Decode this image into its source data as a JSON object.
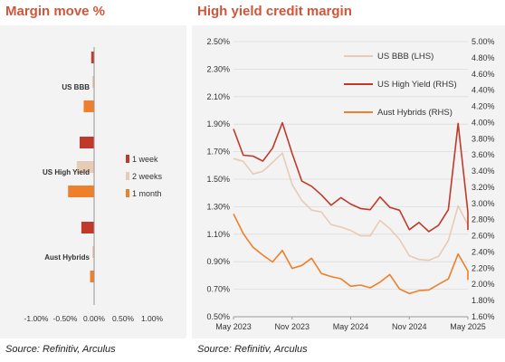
{
  "left": {
    "title": "Margin move %",
    "source": "Source: Refinitiv, Arculus"
  },
  "right": {
    "title": "High yield credit margin",
    "source": "Source: Refinitiv, Arculus"
  },
  "chart_data": [
    {
      "type": "bar",
      "orientation": "horizontal",
      "categories": [
        "US BBB",
        "US High Yield",
        "Aust Hybrids"
      ],
      "series": [
        {
          "name": "1 week",
          "color": "#c0392b",
          "values": [
            -0.05,
            -0.25,
            -0.22
          ]
        },
        {
          "name": "2 weeks",
          "color": "#e8cbb5",
          "values": [
            -0.03,
            -0.3,
            -0.03
          ]
        },
        {
          "name": "1 month",
          "color": "#ef7f2a",
          "values": [
            -0.18,
            -0.45,
            -0.07
          ]
        }
      ],
      "xlim": [
        -1.0,
        1.0
      ],
      "x_ticks": [
        "-1.00%",
        "-0.50%",
        "0.00%",
        "0.50%",
        "1.00%"
      ],
      "legend_position": "right"
    },
    {
      "type": "line",
      "x_ticks": [
        "May 2023",
        "Nov 2023",
        "May 2024",
        "Nov 2024",
        "May 2025"
      ],
      "y_left_ticks": [
        "0.50%",
        "0.70%",
        "0.90%",
        "1.10%",
        "1.30%",
        "1.50%",
        "1.70%",
        "1.90%",
        "2.10%",
        "2.30%",
        "2.50%"
      ],
      "y_right_ticks": [
        "1.60%",
        "1.80%",
        "2.00%",
        "2.20%",
        "2.40%",
        "2.60%",
        "2.80%",
        "3.00%",
        "3.20%",
        "3.40%",
        "3.60%",
        "3.80%",
        "4.00%",
        "4.20%",
        "4.40%",
        "4.60%",
        "4.80%",
        "5.00%"
      ],
      "ylim_left": [
        0.5,
        2.5
      ],
      "ylim_right": [
        1.6,
        5.0
      ],
      "legend_position": "top-right",
      "series": [
        {
          "name": "US BBB (LHS)",
          "axis": "left",
          "color": "#e8cbb5",
          "x": [
            "2023-05",
            "2023-06",
            "2023-07",
            "2023-08",
            "2023-09",
            "2023-10",
            "2023-11",
            "2023-12",
            "2024-01",
            "2024-02",
            "2024-03",
            "2024-04",
            "2024-05",
            "2024-06",
            "2024-07",
            "2024-08",
            "2024-09",
            "2024-10",
            "2024-11",
            "2024-12",
            "2025-01",
            "2025-02",
            "2025-03",
            "2025-04",
            "2025-05",
            "2025-06"
          ],
          "y": [
            1.65,
            1.62,
            1.55,
            1.55,
            1.62,
            1.7,
            1.45,
            1.35,
            1.28,
            1.25,
            1.18,
            1.15,
            1.12,
            1.1,
            1.08,
            1.2,
            1.15,
            1.05,
            0.95,
            0.92,
            0.9,
            0.95,
            1.05,
            1.3,
            1.18,
            1.15
          ]
        },
        {
          "name": "US High Yield (RHS)",
          "axis": "right",
          "color": "#c0392b",
          "x": [
            "2023-05",
            "2023-06",
            "2023-07",
            "2023-08",
            "2023-09",
            "2023-10",
            "2023-11",
            "2023-12",
            "2024-01",
            "2024-02",
            "2024-03",
            "2024-04",
            "2024-05",
            "2024-06",
            "2024-07",
            "2024-08",
            "2024-09",
            "2024-10",
            "2024-11",
            "2024-12",
            "2025-01",
            "2025-02",
            "2025-03",
            "2025-04",
            "2025-05",
            "2025-06"
          ],
          "y": [
            3.9,
            3.6,
            3.6,
            3.5,
            3.7,
            4.0,
            3.6,
            3.3,
            3.2,
            3.1,
            3.0,
            3.05,
            3.0,
            2.95,
            2.9,
            3.1,
            2.95,
            2.9,
            2.7,
            2.75,
            2.65,
            2.75,
            2.9,
            4.0,
            2.9,
            2.65
          ]
        },
        {
          "name": "Aust Hybrids (RHS)",
          "axis": "right",
          "color": "#ef7f2a",
          "x": [
            "2023-05",
            "2023-06",
            "2023-07",
            "2023-08",
            "2023-09",
            "2023-10",
            "2023-11",
            "2023-12",
            "2024-01",
            "2024-02",
            "2024-03",
            "2024-04",
            "2024-05",
            "2024-06",
            "2024-07",
            "2024-08",
            "2024-09",
            "2024-10",
            "2024-11",
            "2024-12",
            "2025-01",
            "2025-02",
            "2025-03",
            "2025-04",
            "2025-05",
            "2025-06"
          ],
          "y": [
            2.85,
            2.65,
            2.45,
            2.35,
            2.3,
            2.4,
            2.2,
            2.25,
            2.3,
            2.15,
            2.1,
            2.05,
            2.0,
            1.98,
            1.95,
            2.05,
            2.1,
            1.95,
            1.9,
            1.9,
            1.95,
            2.0,
            2.05,
            2.4,
            2.15,
            2.05
          ]
        }
      ]
    }
  ]
}
